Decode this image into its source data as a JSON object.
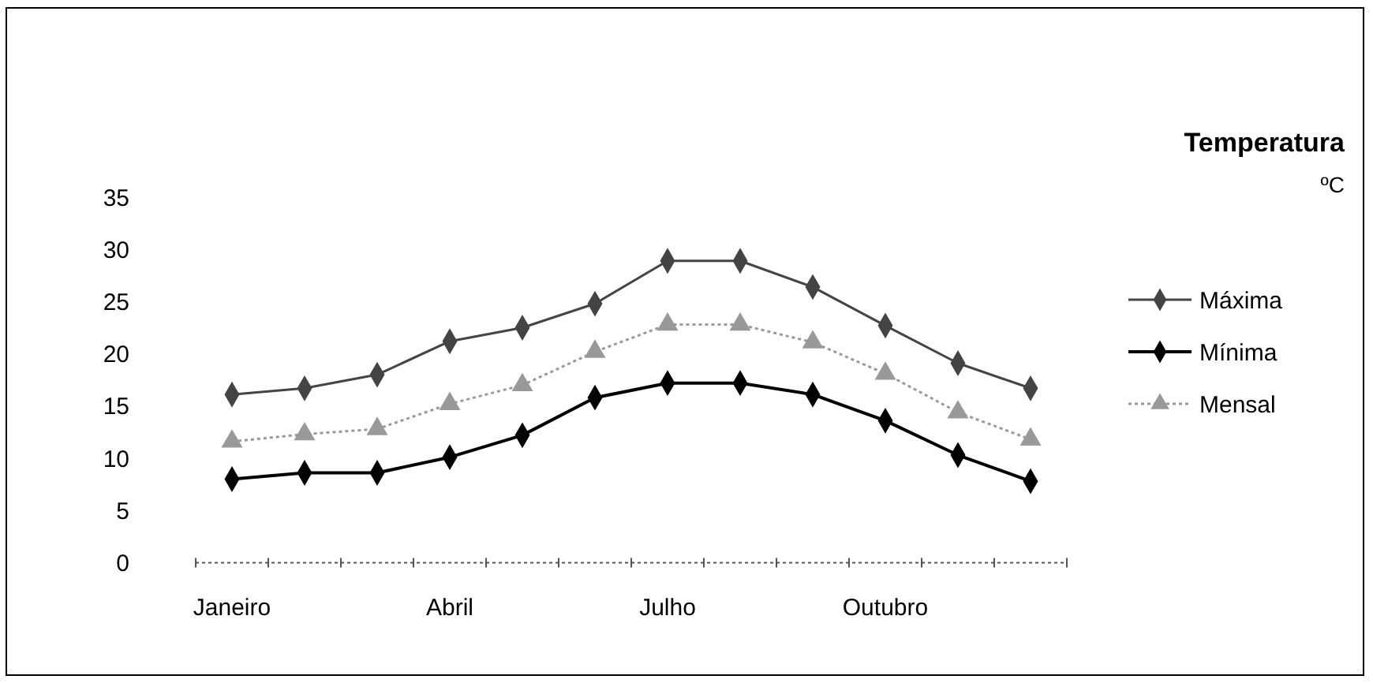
{
  "chart_data": {
    "type": "line",
    "title": "Temperatura",
    "subtitle": "ºC",
    "categories": [
      "Janeiro",
      null,
      null,
      "Abril",
      null,
      null,
      "Julho",
      null,
      null,
      "Outubro",
      null,
      null
    ],
    "series": [
      {
        "name": "Máxima",
        "color": "#444444",
        "marker": "diamond",
        "line_style": "solid",
        "values": [
          16.1,
          16.7,
          18.0,
          21.2,
          22.5,
          24.8,
          28.9,
          28.9,
          26.4,
          22.7,
          19.1,
          16.7
        ]
      },
      {
        "name": "Mínima",
        "color": "#000000",
        "marker": "diamond",
        "line_style": "solid",
        "values": [
          8.0,
          8.6,
          8.6,
          10.1,
          12.2,
          15.8,
          17.2,
          17.2,
          16.1,
          13.6,
          10.3,
          7.8
        ]
      },
      {
        "name": "Mensal",
        "color": "#999999",
        "marker": "triangle",
        "line_style": "dotted",
        "values": [
          11.6,
          12.3,
          12.8,
          15.2,
          17.0,
          20.2,
          22.8,
          22.8,
          21.1,
          18.1,
          14.4,
          11.8
        ]
      }
    ],
    "ylim": [
      0,
      35
    ],
    "yticks": [
      0,
      5,
      10,
      15,
      20,
      25,
      30,
      35
    ],
    "grid": false,
    "legend": "right"
  }
}
